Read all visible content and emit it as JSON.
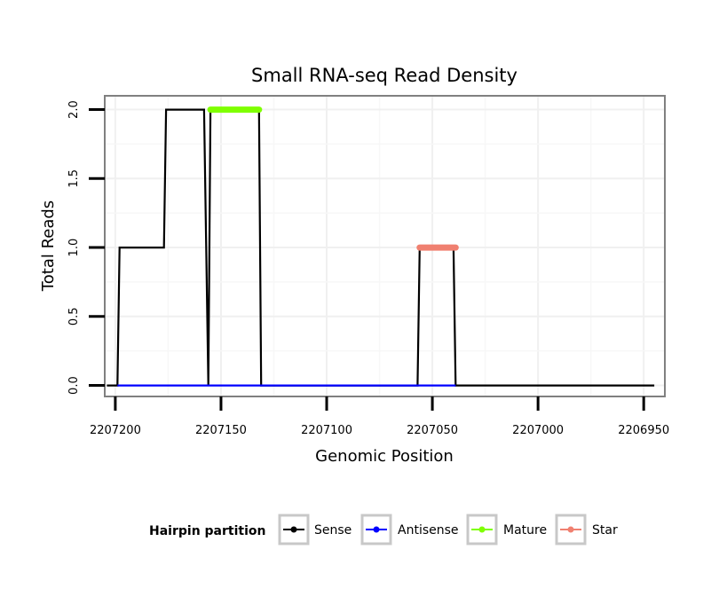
{
  "chart_data": {
    "type": "line",
    "title": "Small RNA-seq Read Density",
    "xlabel": "Genomic Position",
    "ylabel": "Total Reads",
    "x_reversed": true,
    "xlim": [
      2207205,
      2206940
    ],
    "ylim": [
      -0.08,
      2.1
    ],
    "xticks": [
      2207200,
      2207150,
      2207100,
      2207050,
      2207000,
      2206950
    ],
    "xtick_labels": [
      "2207200",
      "2207150",
      "2207100",
      "2207050",
      "2207000",
      "2206950"
    ],
    "yticks": [
      0.0,
      0.5,
      1.0,
      1.5,
      2.0
    ],
    "ytick_labels": [
      "0.0",
      "0.5",
      "1.0",
      "1.5",
      "2.0"
    ],
    "grid": true,
    "legend": {
      "title": "Hairpin partition",
      "position": "bottom",
      "entries": [
        {
          "name": "Sense",
          "color": "#000000"
        },
        {
          "name": "Antisense",
          "color": "#0000ff"
        },
        {
          "name": "Mature",
          "color": "#7fff00"
        },
        {
          "name": "Star",
          "color": "#f08070"
        }
      ]
    },
    "series": [
      {
        "name": "Sense",
        "color": "#000000",
        "x": [
          2207204,
          2207199,
          2207198,
          2207177,
          2207176,
          2207158,
          2207156,
          2207155,
          2207132,
          2207131,
          2207057,
          2207056,
          2207040,
          2207039,
          2206945
        ],
        "y": [
          0,
          0,
          1,
          1,
          2,
          2,
          0,
          2,
          2,
          0,
          0,
          1,
          1,
          0,
          0
        ]
      },
      {
        "name": "Antisense",
        "color": "#0000ff",
        "x": [
          2207199,
          2207131,
          2207056,
          2207039
        ],
        "y": [
          0,
          0,
          0,
          0
        ]
      },
      {
        "name": "Mature",
        "color": "#7fff00",
        "x": [
          2207155,
          2207132
        ],
        "y": [
          2,
          2
        ]
      },
      {
        "name": "Star",
        "color": "#f08070",
        "x": [
          2207056,
          2207039
        ],
        "y": [
          1,
          1
        ]
      }
    ]
  }
}
